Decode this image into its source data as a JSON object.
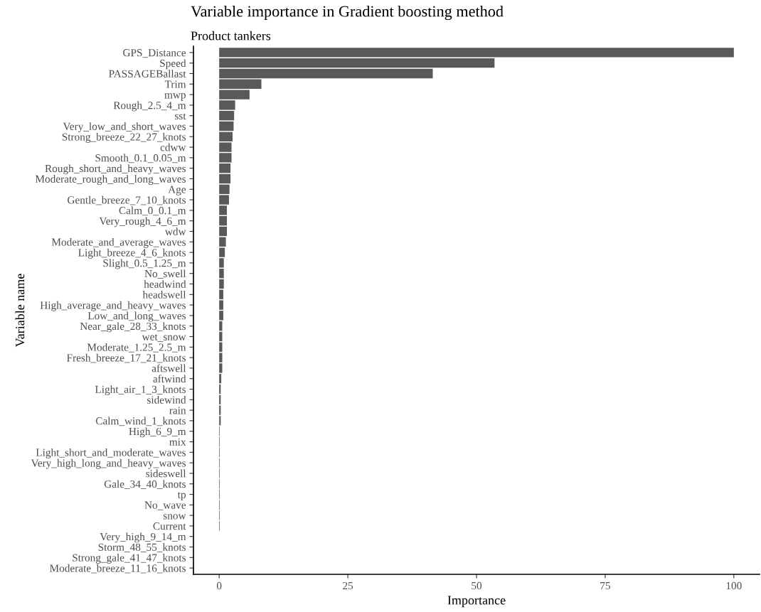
{
  "chart_data": {
    "type": "bar",
    "orientation": "horizontal",
    "title": "Variable importance in Gradient boosting method",
    "subtitle": "Product tankers",
    "xlabel": "Importance",
    "ylabel": "Variable name",
    "categories": [
      "GPS_Distance",
      "Speed",
      "PASSAGEBallast",
      "Trim",
      "mwp",
      "Rough_2.5_4_m",
      "sst",
      "Very_low_and_short_waves",
      "Strong_breeze_22_27_knots",
      "cdww",
      "Smooth_0.1_0.05_m",
      "Rough_short_and_heavy_waves",
      "Moderate_rough_and_long_waves",
      "Age",
      "Gentle_breeze_7_10_knots",
      "Calm_0_0.1_m",
      "Very_rough_4_6_m",
      "wdw",
      "Moderate_and_average_waves",
      "Light_breeze_4_6_knots",
      "Slight_0.5_1.25_m",
      "No_swell",
      "headwind",
      "headswell",
      "High_average_and_heavy_waves",
      "Low_and_long_waves",
      "Near_gale_28_33_knots",
      "wet_snow",
      "Moderate_1.25_2.5_m",
      "Fresh_breeze_17_21_knots",
      "aftswell",
      "aftwind",
      "Light_air_1_3_knots",
      "sidewind",
      "rain",
      "Calm_wind_1_knots",
      "High_6_9_m",
      "mix",
      "Light_short_and_moderate_waves",
      "Very_high_long_and_heavy_waves",
      "sideswell",
      "Gale_34_40_knots",
      "tp",
      "No_wave",
      "snow",
      "Current",
      "Very_high_9_14_m",
      "Storm_48_55_knots",
      "Strong_gale_41_47_knots",
      "Moderate_breeze_11_16_knots"
    ],
    "values": [
      100,
      53.5,
      41.5,
      8.2,
      5.9,
      3.1,
      2.9,
      2.8,
      2.6,
      2.4,
      2.4,
      2.2,
      2.2,
      2.0,
      1.9,
      1.5,
      1.5,
      1.5,
      1.3,
      1.1,
      0.9,
      0.9,
      0.9,
      0.8,
      0.8,
      0.8,
      0.6,
      0.6,
      0.6,
      0.6,
      0.6,
      0.4,
      0.3,
      0.3,
      0.3,
      0.3,
      0.1,
      0.1,
      0.1,
      0.1,
      0.1,
      0.1,
      0.1,
      0.1,
      0.1,
      0.1,
      0,
      0,
      0,
      0
    ],
    "color": "#595959",
    "xlim": [
      -5,
      105
    ],
    "xticks": [
      0,
      25,
      50,
      75,
      100
    ],
    "grid": false
  }
}
